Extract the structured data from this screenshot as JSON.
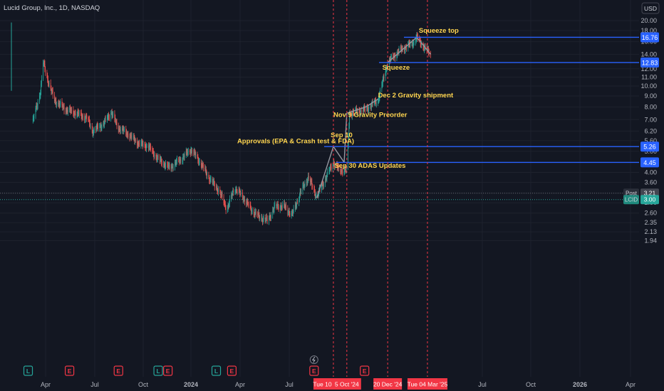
{
  "header": {
    "symbol_line": "Lucid Group, Inc., 1D, NASDAQ"
  },
  "currency_button": "USD",
  "colors": {
    "background": "#131722",
    "up": "#26a69a",
    "down": "#ef5350",
    "annotation_text": "#ffd54f",
    "hline": "#2962ff",
    "vline": "#f23645",
    "axis_text": "#b2b5be",
    "trend": "#9598a1",
    "earnings_badge": "#f23645",
    "dividend_badge": "#26a69a"
  },
  "chart_data": {
    "type": "candlestick",
    "scale": "log",
    "interval": "1D",
    "y_ticks": [
      "20.00",
      "18.00",
      "16.00",
      "14.00",
      "12.00",
      "11.00",
      "10.00",
      "9.00",
      "8.00",
      "7.00",
      "6.20",
      "5.60",
      "5.00",
      "4.45",
      "4.00",
      "3.60",
      "3.21",
      "2.90",
      "2.60",
      "2.35",
      "2.13",
      "1.94"
    ],
    "x_ticks": [
      "Apr",
      "Jul",
      "Oct",
      "2024",
      "Apr",
      "Jul",
      "Jul",
      "Oct",
      "2026",
      "Apr"
    ],
    "price_path": [
      {
        "date": "2023-03-01",
        "price": 6.9
      },
      {
        "date": "2023-03-15",
        "price": 9.5
      },
      {
        "date": "2023-03-20",
        "price": 12.8
      },
      {
        "date": "2023-03-25",
        "price": 11.5
      },
      {
        "date": "2023-04-01",
        "price": 10.0
      },
      {
        "date": "2023-04-10",
        "price": 8.6
      },
      {
        "date": "2023-05-01",
        "price": 7.8
      },
      {
        "date": "2023-05-20",
        "price": 7.5
      },
      {
        "date": "2023-06-10",
        "price": 7.1
      },
      {
        "date": "2023-06-20",
        "price": 6.2
      },
      {
        "date": "2023-07-10",
        "price": 6.7
      },
      {
        "date": "2023-07-25",
        "price": 7.6
      },
      {
        "date": "2023-08-05",
        "price": 6.5
      },
      {
        "date": "2023-08-25",
        "price": 6.0
      },
      {
        "date": "2023-09-15",
        "price": 5.4
      },
      {
        "date": "2023-10-01",
        "price": 5.3
      },
      {
        "date": "2023-10-20",
        "price": 4.6
      },
      {
        "date": "2023-11-10",
        "price": 4.2
      },
      {
        "date": "2023-12-01",
        "price": 4.6
      },
      {
        "date": "2023-12-20",
        "price": 5.1
      },
      {
        "date": "2024-01-05",
        "price": 4.5
      },
      {
        "date": "2024-01-25",
        "price": 3.7
      },
      {
        "date": "2024-02-10",
        "price": 3.3
      },
      {
        "date": "2024-02-25",
        "price": 2.7
      },
      {
        "date": "2024-03-10",
        "price": 3.4
      },
      {
        "date": "2024-03-25",
        "price": 3.1
      },
      {
        "date": "2024-04-10",
        "price": 2.7
      },
      {
        "date": "2024-04-25",
        "price": 2.5
      },
      {
        "date": "2024-05-10",
        "price": 2.4
      },
      {
        "date": "2024-05-25",
        "price": 2.8
      },
      {
        "date": "2024-06-10",
        "price": 2.8
      },
      {
        "date": "2024-06-25",
        "price": 2.55
      },
      {
        "date": "2024-07-10",
        "price": 3.2
      },
      {
        "date": "2024-07-25",
        "price": 3.8
      },
      {
        "date": "2024-08-10",
        "price": 3.1
      },
      {
        "date": "2024-08-25",
        "price": 3.7
      },
      {
        "date": "2024-09-10",
        "price": 4.45
      },
      {
        "date": "2024-09-20",
        "price": 4.1
      },
      {
        "date": "2024-10-05",
        "price": 4.1
      },
      {
        "date": "2024-10-10",
        "price": 7.5
      },
      {
        "date": "2024-11-09",
        "price": 7.8
      },
      {
        "date": "2024-12-02",
        "price": 8.6
      },
      {
        "date": "2024-12-20",
        "price": 12.83
      },
      {
        "date": "2025-01-10",
        "price": 14.5
      },
      {
        "date": "2025-02-05",
        "price": 15.8
      },
      {
        "date": "2025-02-12",
        "price": 16.76
      },
      {
        "date": "2025-02-25",
        "price": 15.2
      },
      {
        "date": "2025-03-10",
        "price": 14.0
      }
    ],
    "horizontal_levels": [
      {
        "label": "16.76",
        "price": 16.76
      },
      {
        "label": "12.83",
        "price": 12.83
      },
      {
        "label": "5.26",
        "price": 5.26
      },
      {
        "label": "4.45",
        "price": 4.45
      }
    ],
    "current_price_markers": [
      {
        "label": "Post",
        "value": "3.21",
        "price": 3.21
      },
      {
        "label": "LCID",
        "value": "3.00",
        "price": 3.0
      }
    ],
    "annotation_lines": [
      {
        "from": {
          "date": "2024-08-10",
          "price": 3.05
        },
        "to": {
          "date": "2024-09-10",
          "price": 5.26
        }
      },
      {
        "from": {
          "date": "2024-09-10",
          "price": 5.26
        },
        "to": {
          "date": "2024-09-30",
          "price": 4.45
        }
      },
      {
        "from": {
          "date": "2024-09-30",
          "price": 4.45
        },
        "to": {
          "date": "2024-10-05",
          "price": 7.5
        }
      },
      {
        "from": {
          "date": "2024-10-05",
          "price": 7.5
        },
        "to": {
          "date": "2024-11-09",
          "price": 8.0
        }
      },
      {
        "from": {
          "date": "2024-11-09",
          "price": 8.0
        },
        "to": {
          "date": "2024-12-02",
          "price": 8.7
        }
      },
      {
        "from": {
          "date": "2024-12-20",
          "price": 12.83
        },
        "to": {
          "date": "2025-02-12",
          "price": 16.76
        }
      },
      {
        "from": {
          "date": "2025-02-12",
          "price": 16.76
        },
        "to": {
          "date": "2025-03-10",
          "price": 14.0
        }
      }
    ],
    "vertical_markers": [
      {
        "date": "2024-09-10",
        "label": "Tue 10 Sep '24"
      },
      {
        "date": "2024-10-05",
        "label": "5 Oct '24"
      },
      {
        "date": "2024-12-20",
        "label": "20 Dec '24"
      },
      {
        "date": "2025-03-04",
        "label": "Tue 04 Mar '25"
      }
    ],
    "annotations": [
      {
        "text": "Squeeze top",
        "date": "2025-02-16",
        "price": 17.6
      },
      {
        "text": "Squeeze",
        "date": "2024-12-10",
        "price": 11.9
      },
      {
        "text": "Dec 2 Gravity shipment",
        "date": "2024-12-02",
        "price": 8.85
      },
      {
        "text": "Nov 9 Gravity Preorder",
        "date": "2024-09-10",
        "price": 7.2
      },
      {
        "text": "Sep 10",
        "date": "2024-09-05",
        "price": 5.8
      },
      {
        "text": "Approvals (EPA & Crash test & FDA)",
        "date": "2024-03-15",
        "price": 5.45
      },
      {
        "text": "Sep 30 ADAS Updates",
        "date": "2024-09-12",
        "price": 4.2
      }
    ],
    "event_badges": [
      {
        "type": "dividend",
        "label": "L",
        "date": "2023-02-20"
      },
      {
        "type": "earnings",
        "label": "E",
        "date": "2023-05-08"
      },
      {
        "type": "earnings",
        "label": "E",
        "date": "2023-08-07"
      },
      {
        "type": "dividend",
        "label": "L",
        "date": "2023-10-20"
      },
      {
        "type": "earnings",
        "label": "E",
        "date": "2023-11-07"
      },
      {
        "type": "dividend",
        "label": "L",
        "date": "2024-02-05"
      },
      {
        "type": "earnings",
        "label": "E",
        "date": "2024-03-05"
      },
      {
        "type": "earnings",
        "label": "E",
        "date": "2024-08-05"
      },
      {
        "type": "earnings",
        "label": "E",
        "date": "2024-11-07"
      }
    ],
    "event_flash_date": "2024-08-05"
  }
}
